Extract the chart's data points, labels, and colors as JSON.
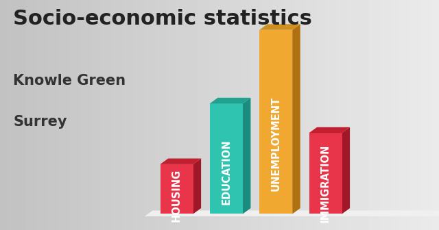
{
  "title_line1": "Socio-economic statistics",
  "title_line2": "Knowle Green",
  "title_line3": "Surrey",
  "categories": [
    "HOUSING",
    "EDUCATION",
    "UNEMPLOYMENT",
    "IMMIGRATION"
  ],
  "values": [
    0.27,
    0.6,
    1.0,
    0.44
  ],
  "bar_colors": [
    "#e8354a",
    "#2ec4b0",
    "#f0a830",
    "#e8354a"
  ],
  "bar_colors_dark": [
    "#a01828",
    "#1a8c80",
    "#b07010",
    "#a01828"
  ],
  "bar_colors_top": [
    "#c02030",
    "#22a090",
    "#d09020",
    "#c02030"
  ],
  "background_color_left": "#c8c8c8",
  "background_color_right": "#e8e8e8",
  "title_fontsize": 22,
  "subtitle_fontsize": 15,
  "label_fontsize": 10.5
}
